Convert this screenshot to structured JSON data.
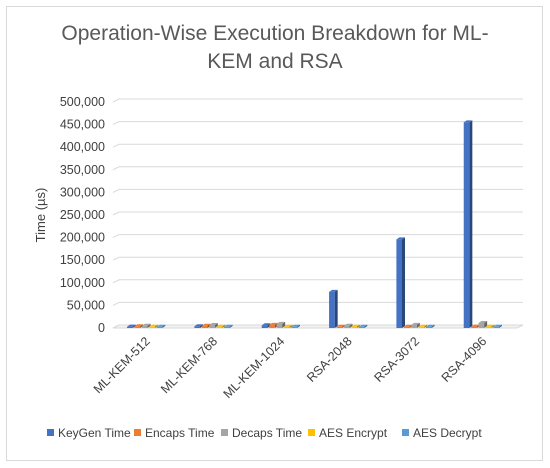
{
  "chart_data": {
    "type": "bar",
    "title": "Operation-Wise Execution Breakdown for ML-KEM and RSA",
    "title_lines": [
      "Operation-Wise Execution Breakdown for ML-",
      "KEM and RSA"
    ],
    "ylabel": "Time (µs)",
    "xlabel": "",
    "ylim": [
      0,
      500000
    ],
    "yticks": [
      "0",
      "50,000",
      "100,000",
      "150,000",
      "200,000",
      "250,000",
      "300,000",
      "350,000",
      "400,000",
      "450,000",
      "500,000"
    ],
    "ytick_values": [
      0,
      50000,
      100000,
      150000,
      200000,
      250000,
      300000,
      350000,
      400000,
      450000,
      500000
    ],
    "grid": true,
    "legend_position": "bottom",
    "categories": [
      "ML-KEM-512",
      "ML-KEM-768",
      "ML-KEM-1024",
      "RSA-2048",
      "RSA-3072",
      "RSA-4096"
    ],
    "series": [
      {
        "name": "KeyGen Time",
        "color": "#4472c4",
        "values": [
          3000,
          4000,
          6000,
          80000,
          196000,
          455000
        ]
      },
      {
        "name": "Encaps Time",
        "color": "#ed7d31",
        "values": [
          4000,
          5000,
          7000,
          2000,
          2500,
          3000
        ]
      },
      {
        "name": "Decaps Time",
        "color": "#a5a5a5",
        "values": [
          5000,
          6500,
          9000,
          5000,
          7000,
          11000
        ]
      },
      {
        "name": "AES Encrypt",
        "color": "#ffc000",
        "values": [
          300,
          300,
          300,
          300,
          300,
          300
        ]
      },
      {
        "name": "AES Decrypt",
        "color": "#5b9bd5",
        "values": [
          300,
          300,
          300,
          300,
          300,
          300
        ]
      }
    ]
  }
}
